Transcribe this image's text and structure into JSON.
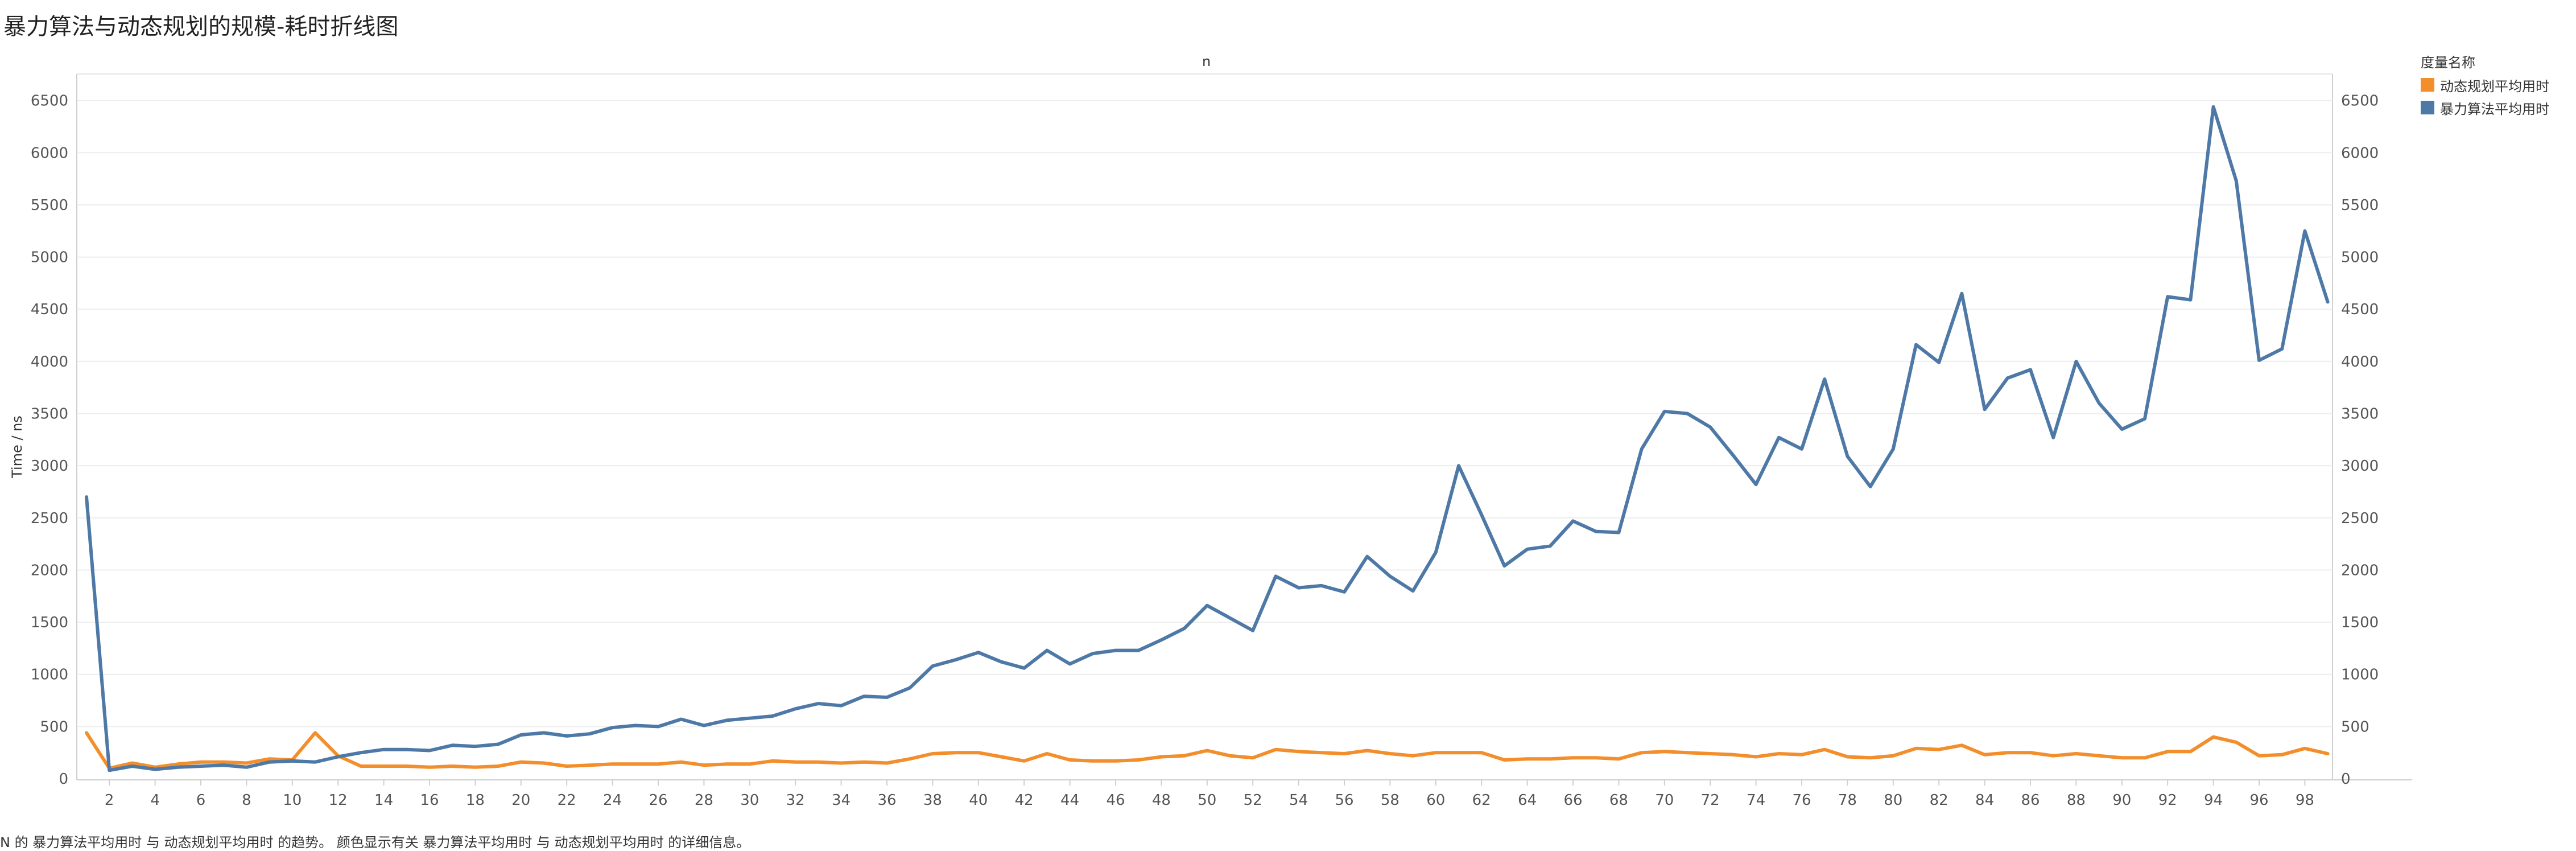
{
  "title": "暴力算法与动态规划的规模-耗时折线图",
  "top_axis_label": "n",
  "legend": {
    "title": "度量名称",
    "items": [
      {
        "label": "动态规划平均用时",
        "color": "#f28e2b"
      },
      {
        "label": "暴力算法平均用时",
        "color": "#4e79a7"
      }
    ]
  },
  "caption": "N 的 暴力算法平均用时 与 动态规划平均用时 的趋势。 颜色显示有关 暴力算法平均用时 与 动态规划平均用时 的详细信息。",
  "chart_data": {
    "type": "line",
    "title": "暴力算法与动态规划的规模-耗时折线图",
    "xlabel": "n",
    "ylabel": "Time / ns",
    "x": [
      1,
      2,
      3,
      4,
      5,
      6,
      7,
      8,
      9,
      10,
      11,
      12,
      13,
      14,
      15,
      16,
      17,
      18,
      19,
      20,
      21,
      22,
      23,
      24,
      25,
      26,
      27,
      28,
      29,
      30,
      31,
      32,
      33,
      34,
      35,
      36,
      37,
      38,
      39,
      40,
      41,
      42,
      43,
      44,
      45,
      46,
      47,
      48,
      49,
      50,
      51,
      52,
      53,
      54,
      55,
      56,
      57,
      58,
      59,
      60,
      61,
      62,
      63,
      64,
      65,
      66,
      67,
      68,
      69,
      70,
      71,
      72,
      73,
      74,
      75,
      76,
      77,
      78,
      79,
      80,
      81,
      82,
      83,
      84,
      85,
      86,
      87,
      88,
      89,
      90,
      91,
      92,
      93,
      94,
      95,
      96,
      97,
      98,
      99
    ],
    "xticks": [
      2,
      4,
      6,
      8,
      10,
      12,
      14,
      16,
      18,
      20,
      22,
      24,
      26,
      28,
      30,
      32,
      34,
      36,
      38,
      40,
      42,
      44,
      46,
      48,
      50,
      52,
      54,
      56,
      58,
      60,
      62,
      64,
      66,
      68,
      70,
      72,
      74,
      76,
      78,
      80,
      82,
      84,
      86,
      88,
      90,
      92,
      94,
      96,
      98
    ],
    "yticks": [
      0,
      500,
      1000,
      1500,
      2000,
      2500,
      3000,
      3500,
      4000,
      4500,
      5000,
      5500,
      6000,
      6500
    ],
    "ylim": [
      0,
      6700
    ],
    "grid": true,
    "legend_position": "top-right",
    "series": [
      {
        "name": "动态规划平均用时",
        "color": "#f28e2b",
        "values": [
          440,
          100,
          150,
          110,
          140,
          160,
          160,
          150,
          190,
          180,
          440,
          220,
          120,
          120,
          120,
          110,
          120,
          110,
          120,
          160,
          150,
          120,
          130,
          140,
          140,
          140,
          160,
          130,
          140,
          140,
          170,
          160,
          160,
          150,
          160,
          150,
          190,
          240,
          250,
          250,
          210,
          170,
          240,
          180,
          170,
          170,
          180,
          210,
          220,
          270,
          220,
          200,
          280,
          260,
          250,
          240,
          270,
          240,
          220,
          250,
          250,
          250,
          180,
          190,
          190,
          200,
          200,
          190,
          250,
          260,
          250,
          240,
          230,
          210,
          240,
          230,
          280,
          210,
          200,
          220,
          290,
          280,
          320,
          230,
          250,
          250,
          220,
          240,
          220,
          200,
          200,
          260,
          260,
          400,
          350,
          220,
          230,
          290,
          240
        ]
      },
      {
        "name": "暴力算法平均用时",
        "color": "#4e79a7",
        "values": [
          2700,
          80,
          120,
          90,
          110,
          120,
          130,
          110,
          160,
          170,
          160,
          210,
          250,
          280,
          280,
          270,
          320,
          310,
          330,
          420,
          440,
          410,
          430,
          490,
          510,
          500,
          570,
          510,
          560,
          580,
          600,
          670,
          720,
          700,
          790,
          780,
          870,
          1080,
          1140,
          1210,
          1120,
          1060,
          1230,
          1100,
          1200,
          1230,
          1230,
          1330,
          1440,
          1660,
          1540,
          1420,
          1940,
          1830,
          1850,
          1790,
          2130,
          1940,
          1800,
          2170,
          3000,
          2530,
          2040,
          2200,
          2230,
          2470,
          2370,
          2360,
          3160,
          3520,
          3500,
          3370,
          3100,
          2820,
          3270,
          3160,
          3830,
          3090,
          2800,
          3160,
          4160,
          3990,
          4650,
          3540,
          3840,
          3920,
          3270,
          4000,
          3600,
          3350,
          3450,
          4620,
          4590,
          6440,
          5730,
          4010,
          4120,
          5250,
          4570
        ]
      }
    ]
  }
}
